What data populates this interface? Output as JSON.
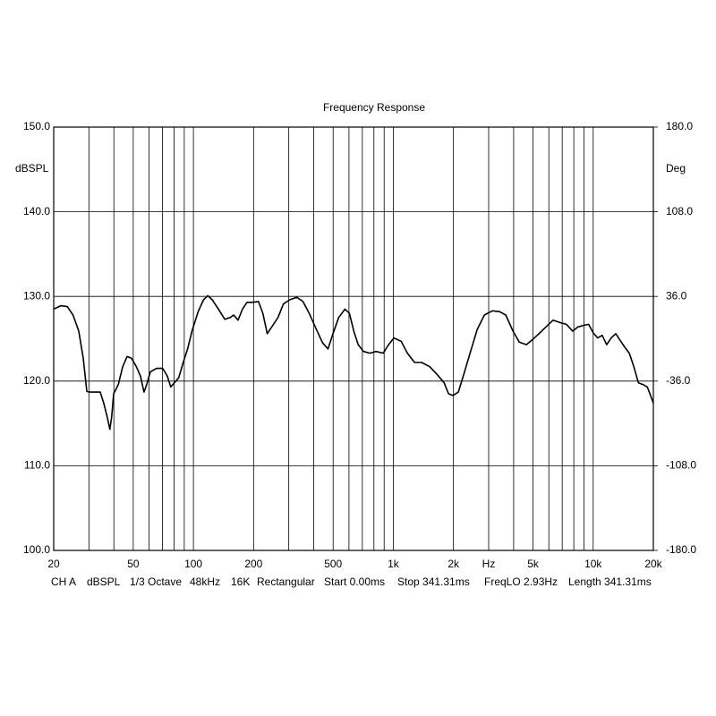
{
  "chart_data": {
    "type": "line",
    "title": "Frequency Response",
    "ylabel": "dBSPL",
    "y2label": "Deg",
    "xscale": "log",
    "grid": true,
    "xlim": [
      20,
      20000
    ],
    "ylim": [
      100,
      150
    ],
    "y2lim": [
      -180,
      180
    ],
    "xticks": [
      20,
      50,
      100,
      200,
      500,
      {
        "value": 1000,
        "label": "1k"
      },
      {
        "value": 2000,
        "label": "2k"
      },
      {
        "value": 3000,
        "label": "Hz"
      },
      {
        "value": 5000,
        "label": "5k"
      },
      {
        "value": 10000,
        "label": "10k"
      },
      {
        "value": 20000,
        "label": "20k"
      }
    ],
    "minor_xgrid": [
      30,
      40,
      60,
      70,
      80,
      90,
      300,
      400,
      600,
      700,
      800,
      900,
      4000,
      6000,
      7000,
      8000,
      9000
    ],
    "yticks": [
      {
        "value": 100,
        "label": "100.0"
      },
      {
        "value": 110,
        "label": "110.0"
      },
      {
        "value": 120,
        "label": "120.0"
      },
      {
        "value": 130,
        "label": "130.0"
      },
      {
        "value": 140,
        "label": "140.0"
      },
      {
        "value": 150,
        "label": "150.0"
      }
    ],
    "y2ticks": [
      {
        "value": -180,
        "label": "-180.0"
      },
      {
        "value": -108,
        "label": "-108.0"
      },
      {
        "value": -36,
        "label": "-36.0"
      },
      {
        "value": 36,
        "label": "36.0"
      },
      {
        "value": 108,
        "label": "108.0"
      },
      {
        "value": 180,
        "label": "180.0"
      }
    ],
    "x": [
      20,
      21.7,
      23.4,
      25,
      26.7,
      28.1,
      29.3,
      30.2,
      34.2,
      35.6,
      37,
      38.2,
      39,
      39.9,
      42.1,
      44.3,
      46.6,
      49,
      51.6,
      54.3,
      56.6,
      58.4,
      60.9,
      65.4,
      70.2,
      74,
      77,
      80.3,
      84.4,
      88.9,
      93.5,
      98.4,
      105.6,
      112.3,
      118.1,
      124.3,
      133.5,
      143.4,
      152.5,
      159,
      167.3,
      176,
      185.2,
      196.8,
      211.5,
      222.5,
      234.2,
      246.4,
      264.8,
      281.7,
      302.8,
      328.9,
      353.4,
      379.8,
      412.3,
      443.1,
      471.5,
      496,
      533.1,
      573.1,
      602.9,
      634.2,
      667.2,
      709.8,
      763.1,
      820.5,
      890.6,
      947.5,
      1008,
      1095,
      1177,
      1277,
      1387,
      1521,
      1653,
      1795,
      1890,
      1989,
      2116,
      2252,
      2421,
      2629,
      2855,
      3131,
      3400,
      3655,
      3970,
      4268,
      4634,
      5031,
      5403,
      5805,
      6303,
      6844,
      7350,
      7893,
      8391,
      9011,
      9493,
      10000,
      10530,
      11090,
      11690,
      12310,
      12970,
      13660,
      14390,
      15160,
      15970,
      16830,
      17730,
      18670,
      20000
    ],
    "series": [
      {
        "name": "CH A",
        "color": "#000000",
        "values": [
          128.5,
          128.9,
          128.8,
          127.8,
          125.9,
          122.7,
          118.8,
          118.7,
          118.7,
          117.4,
          115.8,
          114.3,
          115.8,
          118.5,
          119.6,
          121.7,
          122.9,
          122.7,
          121.8,
          120.6,
          118.7,
          119.6,
          121.1,
          121.5,
          121.5,
          120.6,
          119.3,
          119.8,
          120.4,
          122.2,
          123.8,
          125.9,
          128.2,
          129.6,
          130.1,
          129.6,
          128.5,
          127.3,
          127.5,
          127.8,
          127.2,
          128.5,
          129.3,
          129.3,
          129.4,
          128,
          125.6,
          126.4,
          127.5,
          129.1,
          129.6,
          129.9,
          129.4,
          128,
          126.1,
          124.5,
          123.8,
          125.4,
          127.5,
          128.5,
          128,
          125.9,
          124.3,
          123.5,
          123.3,
          123.5,
          123.3,
          124.3,
          125.1,
          124.7,
          123.3,
          122.2,
          122.2,
          121.7,
          120.8,
          119.8,
          118.5,
          118.3,
          118.7,
          120.8,
          123.3,
          126.1,
          127.8,
          128.3,
          128.2,
          127.8,
          125.9,
          124.6,
          124.3,
          125,
          125.7,
          126.4,
          127.2,
          126.9,
          126.7,
          125.9,
          126.4,
          126.6,
          126.7,
          125.7,
          125.1,
          125.4,
          124.3,
          125.1,
          125.6,
          124.8,
          124,
          123.3,
          121.7,
          119.8,
          119.6,
          119.3,
          117.4
        ]
      }
    ],
    "footer": [
      "dBSPL",
      "1/3 Octave",
      "48kHz",
      "16K",
      "Rectangular",
      "Start 0.00ms",
      "Stop 341.31ms",
      "FreqLO 2.93Hz",
      "Length 341.31ms"
    ]
  }
}
